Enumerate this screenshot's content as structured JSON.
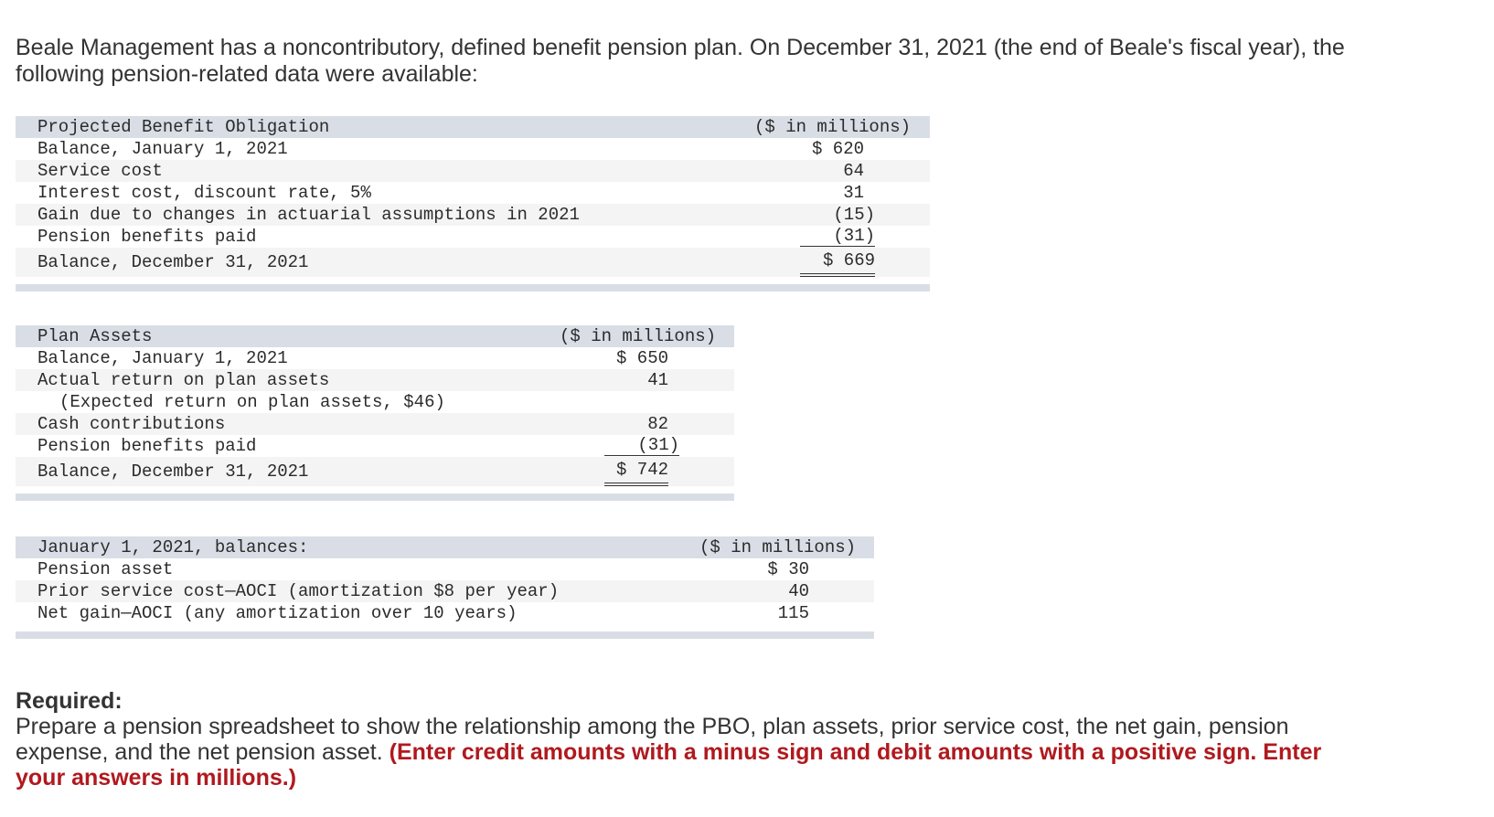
{
  "intro": "Beale Management has a noncontributory, defined benefit pension plan. On December 31, 2021 (the end of Beale's fiscal year), the following pension-related data were available:",
  "pbo": {
    "title": "Projected Benefit Obligation",
    "unit": "($ in millions)",
    "rows": [
      {
        "label": "Balance, January 1, 2021",
        "value": "$ 620"
      },
      {
        "label": "Service cost",
        "value": "64"
      },
      {
        "label": "Interest cost, discount rate, 5%",
        "value": "31"
      },
      {
        "label": "Gain due to changes in actuarial assumptions in 2021",
        "value": "(15)"
      },
      {
        "label": "Pension benefits paid",
        "value": "(31)"
      },
      {
        "label": "Balance, December 31, 2021",
        "value": "$ 669"
      }
    ]
  },
  "plan_assets": {
    "title": "Plan Assets",
    "unit": "($ in millions)",
    "rows": [
      {
        "label": "Balance, January 1, 2021",
        "value": "$ 650"
      },
      {
        "label": "Actual return on plan assets",
        "value": "41"
      },
      {
        "label": "(Expected return on plan assets, $46)",
        "value": ""
      },
      {
        "label": "Cash contributions",
        "value": "82"
      },
      {
        "label": "Pension benefits paid",
        "value": "(31)"
      },
      {
        "label": "Balance, December 31, 2021",
        "value": "$ 742"
      }
    ]
  },
  "balances": {
    "title": "January 1, 2021, balances:",
    "unit": "($ in millions)",
    "rows": [
      {
        "label": "Pension asset",
        "value": "$ 30"
      },
      {
        "label": "Prior service cost—AOCI (amortization $8 per year)",
        "value": "40"
      },
      {
        "label": "Net gain—AOCI (any amortization over 10 years)",
        "value": "115"
      }
    ]
  },
  "required": {
    "title": "Required:",
    "text": "Prepare a pension spreadsheet to show the relationship among the PBO, plan assets, prior service cost, the net gain, pension expense, and the net pension asset.",
    "note": "(Enter credit amounts with a minus sign and debit amounts with a positive sign. Enter your answers in millions.)"
  },
  "colors": {
    "header_bg": "#d9dee6",
    "alt_row_bg": "#f4f4f4",
    "note_red": "#b0191e"
  }
}
